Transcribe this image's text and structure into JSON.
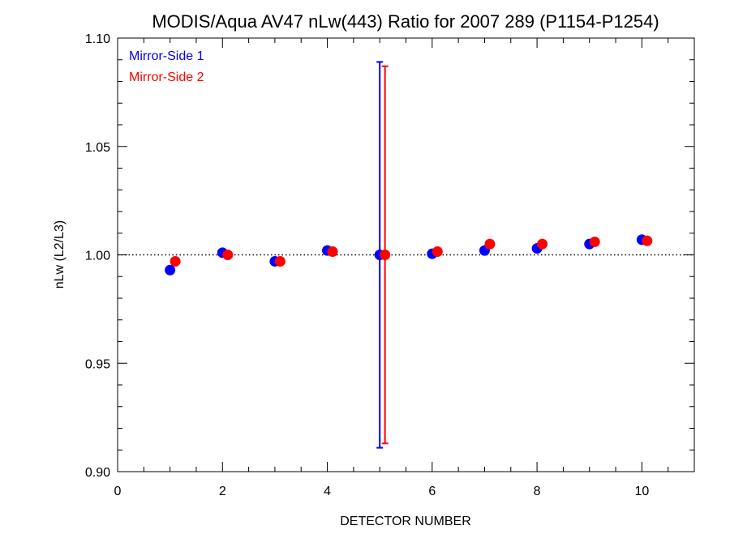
{
  "chart_data": {
    "type": "scatter",
    "title": "MODIS/Aqua AV47 nLw(443) Ratio for 2007 289 (P1154-P1254)",
    "xlabel": "DETECTOR NUMBER",
    "ylabel": "nLw (L2/L3)",
    "xlim": [
      0,
      11
    ],
    "ylim": [
      0.9,
      1.1
    ],
    "x_ticks": [
      0,
      2,
      4,
      6,
      8,
      10
    ],
    "y_ticks": [
      0.9,
      0.95,
      1.0,
      1.05,
      1.1
    ],
    "x_tick_labels": [
      "0",
      "2",
      "4",
      "6",
      "8",
      "10"
    ],
    "y_tick_labels": [
      "0.90",
      "0.95",
      "1.00",
      "1.05",
      "1.10"
    ],
    "reference_line": {
      "y": 1.0,
      "style": "dotted"
    },
    "legend_position": "top-left",
    "grid": false,
    "series": [
      {
        "name": "Mirror-Side 1",
        "color": "#0000ff",
        "x": [
          1,
          2,
          3,
          4,
          5,
          6,
          7,
          8,
          9,
          10
        ],
        "y": [
          0.993,
          1.001,
          0.997,
          1.002,
          1.0,
          1.0005,
          1.002,
          1.003,
          1.005,
          1.007
        ],
        "error_bars": [
          {
            "x": 5,
            "low": 0.911,
            "high": 1.089
          }
        ]
      },
      {
        "name": "Mirror-Side 2",
        "color": "#ff0000",
        "x": [
          1.1,
          2.1,
          3.1,
          4.1,
          5.1,
          6.1,
          7.1,
          8.1,
          9.1,
          10.1
        ],
        "y": [
          0.997,
          1.0,
          0.997,
          1.0015,
          1.0,
          1.0015,
          1.005,
          1.005,
          1.006,
          1.0065
        ],
        "error_bars": [
          {
            "x": 5.1,
            "low": 0.913,
            "high": 1.087
          }
        ]
      }
    ]
  }
}
